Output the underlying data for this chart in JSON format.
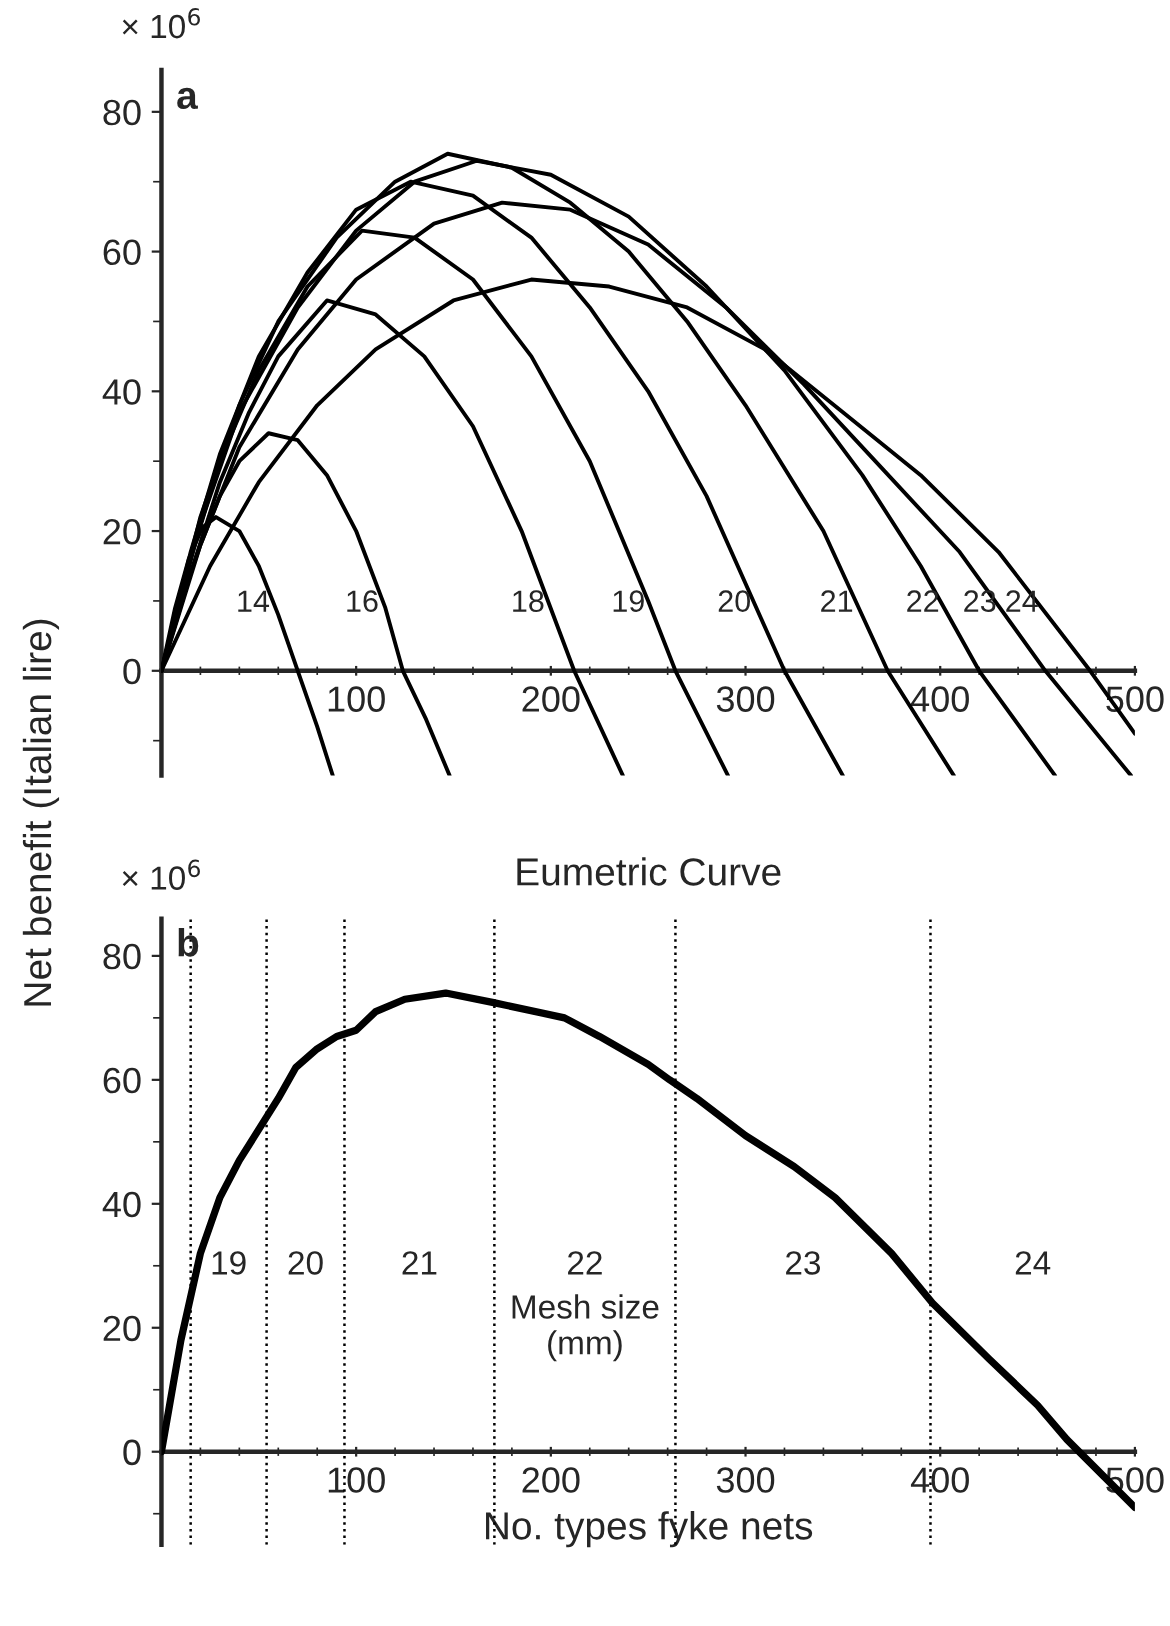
{
  "chart_data": [
    {
      "type": "line",
      "ylabel": "Net benefit (Italian lire)",
      "xlim": [
        0,
        500
      ],
      "ylim": [
        -15,
        86
      ],
      "xticks": [
        100,
        200,
        300,
        400,
        500
      ],
      "yticks": [
        0,
        20,
        40,
        60,
        80
      ],
      "grid": false,
      "marker": "none",
      "line_style": "solid",
      "annotations": [
        "× 10$^{6}$",
        "a"
      ],
      "series": [
        {
          "name": "14",
          "color": "#000000",
          "x": [
            0,
            7,
            14,
            21,
            28,
            40,
            50,
            60,
            70,
            80,
            88
          ],
          "values": [
            0,
            9,
            16,
            20.5,
            22,
            20,
            15,
            8,
            0,
            -8,
            -15
          ]
        },
        {
          "name": "16",
          "color": "#000000",
          "x": [
            0,
            10,
            20,
            30,
            40,
            55,
            70,
            85,
            100,
            115,
            124,
            136,
            148
          ],
          "values": [
            0,
            10,
            18,
            25,
            30,
            34,
            33,
            28,
            20,
            9,
            0,
            -7,
            -15
          ]
        },
        {
          "name": "18",
          "color": "#000000",
          "x": [
            0,
            15,
            30,
            45,
            60,
            85,
            110,
            135,
            160,
            185,
            212,
            237
          ],
          "values": [
            0,
            14,
            27,
            37,
            45,
            53,
            51,
            45,
            35,
            20,
            0,
            -15
          ]
        },
        {
          "name": "19",
          "color": "#000000",
          "x": [
            0,
            15,
            30,
            50,
            75,
            103,
            130,
            160,
            190,
            220,
            250,
            264,
            291
          ],
          "values": [
            0,
            16,
            30,
            43,
            55,
            63,
            62,
            56,
            45,
            30,
            10,
            0,
            -15
          ]
        },
        {
          "name": "20",
          "color": "#000000",
          "x": [
            0,
            15,
            30,
            50,
            75,
            100,
            128,
            160,
            190,
            220,
            250,
            280,
            320,
            350
          ],
          "values": [
            0,
            17,
            31,
            45,
            57,
            66,
            70,
            68,
            62,
            52,
            40,
            25,
            0,
            -15
          ]
        },
        {
          "name": "21",
          "color": "#000000",
          "x": [
            0,
            20,
            40,
            60,
            90,
            120,
            147,
            180,
            210,
            240,
            270,
            300,
            340,
            373,
            407
          ],
          "values": [
            0,
            22,
            38,
            50,
            62,
            70,
            74,
            72,
            67,
            60,
            50,
            38,
            20,
            0,
            -15
          ]
        },
        {
          "name": "22",
          "color": "#000000",
          "x": [
            0,
            20,
            40,
            70,
            100,
            130,
            162,
            200,
            240,
            280,
            320,
            360,
            390,
            420,
            459
          ],
          "values": [
            0,
            21,
            37,
            52,
            63,
            70,
            73,
            71,
            65,
            55,
            43,
            28,
            15,
            0,
            -15
          ]
        },
        {
          "name": "23",
          "color": "#000000",
          "x": [
            0,
            20,
            40,
            70,
            100,
            140,
            175,
            210,
            250,
            290,
            330,
            370,
            410,
            454,
            498
          ],
          "values": [
            0,
            18,
            32,
            46,
            56,
            64,
            67,
            66,
            61,
            52,
            41,
            29,
            17,
            0,
            -15
          ]
        },
        {
          "name": "24",
          "color": "#000000",
          "x": [
            0,
            25,
            50,
            80,
            110,
            150,
            190,
            230,
            270,
            310,
            350,
            390,
            430,
            477,
            500
          ],
          "values": [
            0,
            15,
            27,
            38,
            46,
            53,
            56,
            55,
            52,
            46,
            37,
            28,
            17,
            0,
            -9
          ]
        }
      ]
    },
    {
      "type": "line",
      "title": "Eumetric Curve",
      "xlabel": "No. types fyke nets",
      "xlim": [
        0,
        500
      ],
      "ylim": [
        -15,
        86
      ],
      "xticks": [
        100,
        200,
        300,
        400,
        500
      ],
      "yticks": [
        0,
        20,
        40,
        60,
        80
      ],
      "grid": false,
      "marker": "none",
      "line_style": "solid",
      "annotations": [
        "× 10$^{6}$",
        "b",
        "19",
        "20",
        "21",
        "22",
        "23",
        "24",
        "Mesh size\n(mm)"
      ],
      "ref_lines": [
        {
          "axis": "x",
          "value": 15,
          "line_style": "dotted"
        },
        {
          "axis": "x",
          "value": 54,
          "line_style": "dotted"
        },
        {
          "axis": "x",
          "value": 94,
          "line_style": "dotted"
        },
        {
          "axis": "x",
          "value": 171,
          "line_style": "dotted"
        },
        {
          "axis": "x",
          "value": 264,
          "line_style": "dotted"
        },
        {
          "axis": "x",
          "value": 395,
          "line_style": "dotted"
        }
      ],
      "series": [
        {
          "color": "#000000",
          "x": [
            0,
            10,
            20,
            30,
            40,
            50,
            60,
            69,
            80,
            90,
            100,
            110,
            125,
            146,
            170,
            207,
            225,
            250,
            261,
            275,
            300,
            325,
            346,
            375,
            396,
            425,
            450,
            465,
            500
          ],
          "values": [
            0,
            18,
            32,
            41,
            47,
            52,
            57,
            62,
            65,
            67,
            68,
            71,
            73,
            74,
            72.5,
            70,
            67,
            62.5,
            60,
            57,
            51,
            46,
            41,
            32,
            24,
            15,
            7.5,
            2,
            -9
          ]
        }
      ]
    }
  ]
}
